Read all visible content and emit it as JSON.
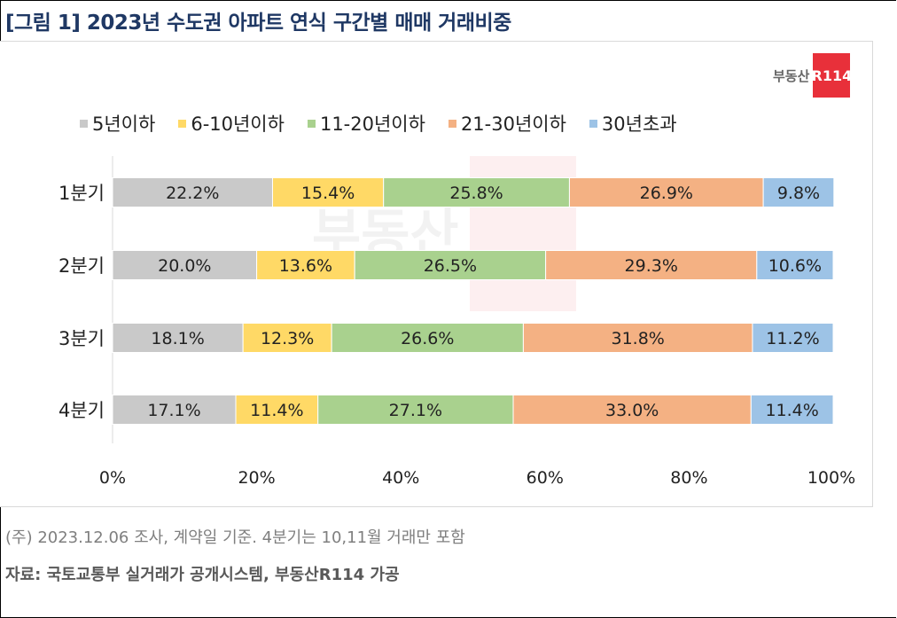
{
  "title": "[그림 1] 2023년 수도권 아파트 연식 구간별 매매 거래비중",
  "logo": {
    "text": "부동산",
    "badge": "R114"
  },
  "note": "(주) 2023.12.06 조사, 계약일 기준. 4분기는 10,11월 거래만 포함",
  "source": "자료: 국토교통부 실거래가 공개시스템, 부동산R114 가공",
  "chart_data": {
    "type": "bar",
    "orientation": "horizontal",
    "stacked": true,
    "categories": [
      "1분기",
      "2분기",
      "3분기",
      "4분기"
    ],
    "series": [
      {
        "name": "5년이하",
        "color": "#c9c9c9",
        "values": [
          22.2,
          20.0,
          18.1,
          17.1
        ]
      },
      {
        "name": "6-10년이하",
        "color": "#ffd966",
        "values": [
          15.4,
          13.6,
          12.3,
          11.4
        ]
      },
      {
        "name": "11-20년이하",
        "color": "#a9d18e",
        "values": [
          25.8,
          26.5,
          26.6,
          27.1
        ]
      },
      {
        "name": "21-30년이하",
        "color": "#f4b183",
        "values": [
          26.9,
          29.3,
          31.8,
          33.0
        ]
      },
      {
        "name": "30년초과",
        "color": "#9dc3e6",
        "values": [
          9.8,
          10.6,
          11.2,
          11.4
        ]
      }
    ],
    "xlim": [
      0,
      100
    ],
    "xticks": [
      "0%",
      "20%",
      "40%",
      "60%",
      "80%",
      "100%"
    ],
    "legend": "top",
    "grid": false
  }
}
